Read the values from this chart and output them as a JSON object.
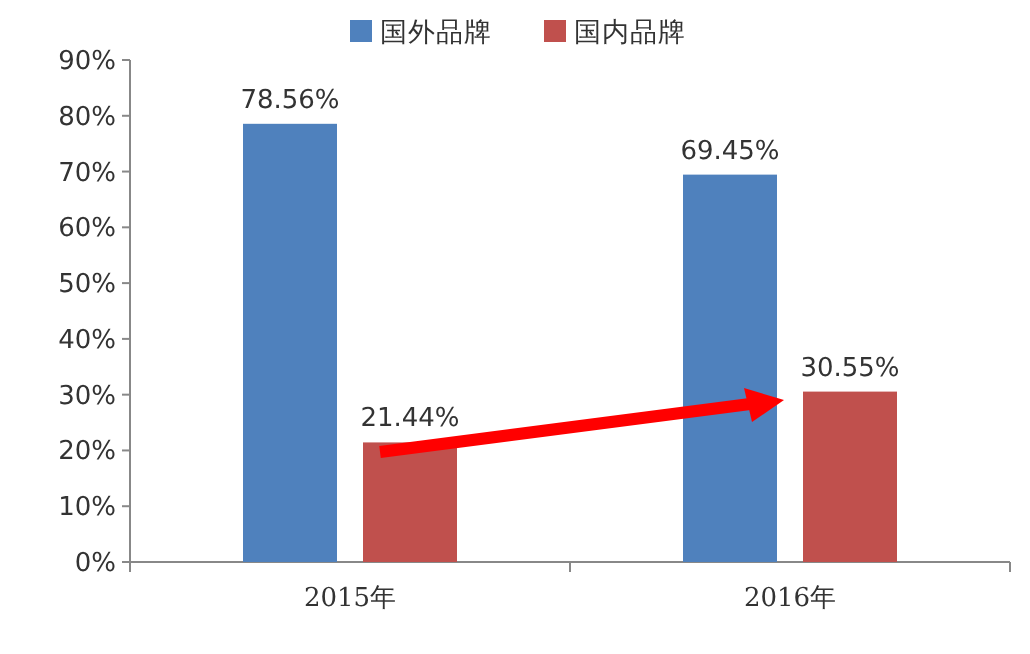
{
  "chart_data": {
    "type": "bar",
    "categories": [
      "2015年",
      "2016年"
    ],
    "series": [
      {
        "name": "国外品牌",
        "color": "#4f81bd",
        "values": [
          78.56,
          69.45
        ],
        "value_labels": [
          "78.56%",
          "69.45%"
        ]
      },
      {
        "name": "国内品牌",
        "color": "#c0504d",
        "values": [
          21.44,
          30.55
        ],
        "value_labels": [
          "21.44%",
          "30.55%"
        ]
      }
    ],
    "ylim": [
      0,
      90
    ],
    "yticks": [
      {
        "value": 0,
        "label": "0%"
      },
      {
        "value": 10,
        "label": "10%"
      },
      {
        "value": 20,
        "label": "20%"
      },
      {
        "value": 30,
        "label": "30%"
      },
      {
        "value": 40,
        "label": "40%"
      },
      {
        "value": 50,
        "label": "50%"
      },
      {
        "value": 60,
        "label": "60%"
      },
      {
        "value": 70,
        "label": "70%"
      },
      {
        "value": 80,
        "label": "80%"
      },
      {
        "value": 90,
        "label": "90%"
      }
    ],
    "legend": "top",
    "grid": false
  }
}
